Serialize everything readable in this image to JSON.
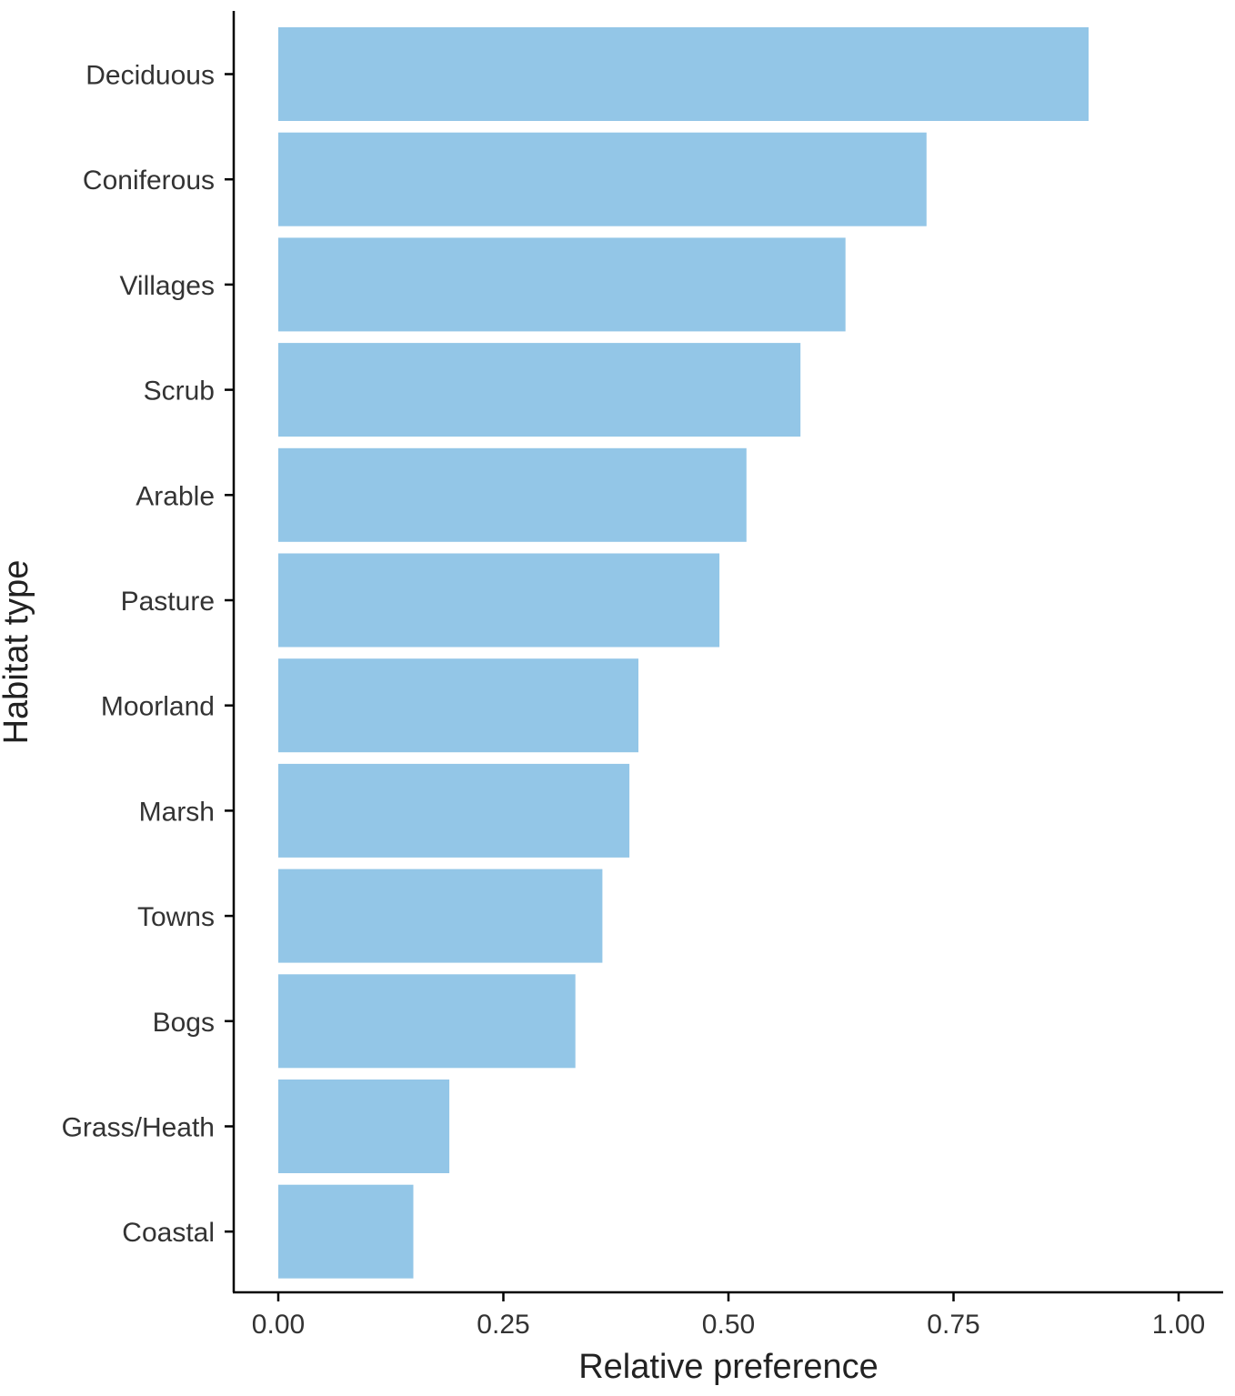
{
  "chart_data": {
    "type": "bar",
    "orientation": "horizontal",
    "categories": [
      "Deciduous",
      "Coniferous",
      "Villages",
      "Scrub",
      "Arable",
      "Pasture",
      "Moorland",
      "Marsh",
      "Towns",
      "Bogs",
      "Grass/Heath",
      "Coastal"
    ],
    "values": [
      0.9,
      0.72,
      0.63,
      0.58,
      0.52,
      0.49,
      0.4,
      0.39,
      0.36,
      0.33,
      0.19,
      0.15
    ],
    "xlabel": "Relative preference",
    "ylabel": "Habitat type",
    "xlim": [
      0,
      1.0
    ],
    "xticks": [
      0.0,
      0.25,
      0.5,
      0.75,
      1.0
    ],
    "xtick_labels": [
      "0.00",
      "0.25",
      "0.50",
      "0.75",
      "1.00"
    ],
    "bar_color": "#93c6e7",
    "grid": false,
    "legend": "none"
  }
}
